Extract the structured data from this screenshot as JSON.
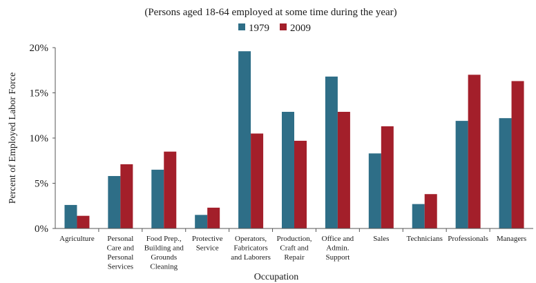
{
  "chart_data": {
    "type": "bar",
    "subtitle": "(Persons aged 18-64 employed at some time during the year)",
    "xlabel": "Occupation",
    "ylabel": "Percent of  Employed Labor Force",
    "ylim": [
      0,
      20
    ],
    "yticks": [
      0,
      5,
      10,
      15,
      20
    ],
    "ytick_labels": [
      "0%",
      "5%",
      "10%",
      "15%",
      "20%"
    ],
    "grid": false,
    "legend_position": "top-center",
    "categories": [
      [
        "Agriculture"
      ],
      [
        "Personal",
        "Care and",
        "Personal",
        "Services"
      ],
      [
        "Food Prep.,",
        "Building and",
        "Grounds",
        "Cleaning"
      ],
      [
        "Protective",
        "Service"
      ],
      [
        "Operators,",
        "Fabricators",
        "and Laborers"
      ],
      [
        "Production,",
        "Craft and",
        "Repair"
      ],
      [
        "Office and",
        "Admin.",
        "Support"
      ],
      [
        "Sales"
      ],
      [
        "Technicians"
      ],
      [
        "Professionals"
      ],
      [
        "Managers"
      ]
    ],
    "series": [
      {
        "name": "1979",
        "color": "#2e6e87",
        "values": [
          2.6,
          5.8,
          6.5,
          1.5,
          19.6,
          12.9,
          16.8,
          8.3,
          2.7,
          11.9,
          12.2
        ]
      },
      {
        "name": "2009",
        "color": "#a31f2a",
        "values": [
          1.4,
          7.1,
          8.5,
          2.3,
          10.5,
          9.7,
          12.9,
          11.3,
          3.8,
          17.0,
          16.3
        ]
      }
    ]
  }
}
